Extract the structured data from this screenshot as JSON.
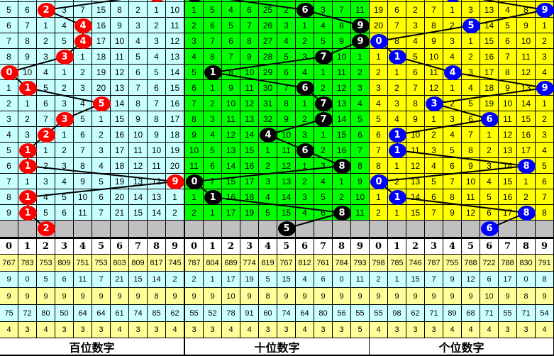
{
  "chart_data": {
    "type": "table",
    "panels": [
      {
        "title": "百位数字",
        "cell_color": "#c8ffff",
        "ball_color": "#ff0000",
        "prev_ball": 8,
        "rows": [
          [
            5,
            6,
            2,
            3,
            7,
            15,
            8,
            2,
            1,
            10
          ],
          [
            6,
            7,
            1,
            4,
            4,
            16,
            9,
            3,
            2,
            11
          ],
          [
            7,
            8,
            2,
            5,
            4,
            17,
            10,
            4,
            3,
            12
          ],
          [
            8,
            9,
            3,
            3,
            1,
            18,
            11,
            5,
            4,
            13
          ],
          [
            0,
            10,
            4,
            1,
            2,
            19,
            12,
            6,
            5,
            14
          ],
          [
            1,
            1,
            5,
            2,
            3,
            20,
            13,
            7,
            6,
            15
          ],
          [
            2,
            1,
            6,
            3,
            4,
            5,
            14,
            8,
            7,
            16
          ],
          [
            3,
            2,
            7,
            3,
            5,
            1,
            15,
            9,
            8,
            17
          ],
          [
            4,
            3,
            2,
            1,
            6,
            2,
            16,
            10,
            9,
            18
          ],
          [
            5,
            1,
            1,
            2,
            7,
            3,
            17,
            11,
            10,
            19
          ],
          [
            6,
            1,
            2,
            3,
            8,
            4,
            18,
            12,
            11,
            20
          ],
          [
            7,
            1,
            3,
            4,
            9,
            5,
            19,
            13,
            12,
            9
          ],
          [
            8,
            1,
            4,
            5,
            10,
            6,
            20,
            14,
            13,
            1
          ],
          [
            9,
            1,
            5,
            6,
            11,
            7,
            21,
            15,
            14,
            2
          ]
        ],
        "balls": [
          2,
          4,
          4,
          3,
          0,
          1,
          5,
          3,
          2,
          1,
          1,
          9,
          1,
          1
        ],
        "next_ball": 2,
        "stats": [
          [
            767,
            783,
            753,
            809,
            751,
            753,
            803,
            809,
            817,
            745
          ],
          [
            9,
            0,
            5,
            6,
            11,
            7,
            21,
            15,
            14,
            2
          ],
          [
            9,
            9,
            9,
            9,
            9,
            9,
            9,
            9,
            8,
            9
          ],
          [
            75,
            72,
            80,
            50,
            64,
            64,
            61,
            74,
            85,
            62
          ],
          [
            4,
            3,
            4,
            3,
            3,
            3,
            4,
            3,
            3,
            4
          ]
        ]
      },
      {
        "title": "十位数字",
        "cell_color": "#00ff00",
        "ball_color": "#000000",
        "prev_ball": 0,
        "rows": [
          [
            1,
            5,
            4,
            6,
            25,
            2,
            6,
            3,
            7,
            11
          ],
          [
            2,
            6,
            5,
            7,
            26,
            3,
            1,
            4,
            8,
            9
          ],
          [
            3,
            7,
            6,
            8,
            27,
            4,
            2,
            5,
            9,
            9
          ],
          [
            4,
            8,
            7,
            9,
            28,
            5,
            3,
            7,
            10,
            1
          ],
          [
            5,
            1,
            8,
            10,
            29,
            6,
            4,
            1,
            11,
            2
          ],
          [
            6,
            1,
            9,
            11,
            30,
            7,
            6,
            2,
            12,
            3
          ],
          [
            7,
            2,
            10,
            12,
            31,
            8,
            1,
            7,
            13,
            4
          ],
          [
            8,
            3,
            11,
            13,
            32,
            9,
            2,
            7,
            14,
            5
          ],
          [
            9,
            4,
            12,
            14,
            4,
            10,
            3,
            1,
            15,
            6
          ],
          [
            10,
            5,
            13,
            15,
            1,
            11,
            6,
            2,
            16,
            7
          ],
          [
            11,
            6,
            14,
            16,
            2,
            12,
            1,
            3,
            8,
            8
          ],
          [
            0,
            7,
            15,
            17,
            3,
            13,
            2,
            4,
            1,
            9
          ],
          [
            1,
            1,
            16,
            18,
            4,
            14,
            3,
            5,
            2,
            10
          ],
          [
            2,
            1,
            17,
            19,
            5,
            15,
            4,
            6,
            8,
            11
          ]
        ],
        "balls": [
          6,
          9,
          9,
          7,
          1,
          6,
          7,
          7,
          4,
          6,
          8,
          0,
          1,
          8
        ],
        "next_ball": 5,
        "stats": [
          [
            787,
            804,
            689,
            774,
            819,
            767,
            812,
            761,
            784,
            793
          ],
          [
            2,
            1,
            17,
            19,
            5,
            15,
            4,
            6,
            0,
            11
          ],
          [
            9,
            9,
            10,
            9,
            8,
            9,
            9,
            9,
            9,
            9
          ],
          [
            55,
            52,
            78,
            91,
            60,
            74,
            64,
            80,
            56,
            55
          ],
          [
            3,
            3,
            4,
            4,
            3,
            3,
            4,
            3,
            3,
            5
          ]
        ]
      },
      {
        "title": "个位数字",
        "cell_color": "#ffff00",
        "ball_color": "#0000ff",
        "prev_ball": 4,
        "rows": [
          [
            19,
            6,
            2,
            7,
            1,
            3,
            13,
            4,
            8,
            9
          ],
          [
            20,
            7,
            3,
            8,
            2,
            5,
            14,
            5,
            9,
            1
          ],
          [
            0,
            8,
            4,
            9,
            3,
            1,
            15,
            6,
            10,
            2
          ],
          [
            1,
            1,
            5,
            10,
            4,
            2,
            16,
            7,
            11,
            3
          ],
          [
            2,
            1,
            6,
            11,
            4,
            3,
            17,
            8,
            12,
            4
          ],
          [
            3,
            2,
            7,
            12,
            1,
            4,
            18,
            9,
            13,
            9
          ],
          [
            4,
            3,
            8,
            3,
            2,
            5,
            19,
            10,
            14,
            1
          ],
          [
            5,
            4,
            9,
            1,
            3,
            6,
            6,
            11,
            15,
            2
          ],
          [
            6,
            1,
            10,
            2,
            4,
            7,
            1,
            12,
            16,
            3
          ],
          [
            7,
            1,
            11,
            3,
            5,
            8,
            2,
            13,
            17,
            4
          ],
          [
            8,
            1,
            12,
            4,
            6,
            9,
            3,
            14,
            8,
            5
          ],
          [
            0,
            2,
            13,
            5,
            7,
            10,
            4,
            15,
            1,
            6
          ],
          [
            1,
            1,
            14,
            6,
            8,
            11,
            5,
            16,
            2,
            7
          ],
          [
            2,
            1,
            15,
            7,
            9,
            12,
            6,
            17,
            8,
            8
          ]
        ],
        "balls": [
          9,
          5,
          0,
          1,
          4,
          9,
          3,
          6,
          1,
          1,
          8,
          0,
          1,
          8
        ],
        "next_ball": 6,
        "stats": [
          [
            798,
            785,
            746,
            787,
            755,
            788,
            722,
            788,
            830,
            791
          ],
          [
            2,
            1,
            15,
            7,
            9,
            12,
            6,
            17,
            0,
            8
          ],
          [
            9,
            9,
            9,
            9,
            9,
            9,
            10,
            9,
            8,
            9
          ],
          [
            55,
            98,
            62,
            71,
            89,
            68,
            71,
            55,
            71,
            54
          ],
          [
            4,
            3,
            3,
            3,
            4,
            4,
            4,
            3,
            3,
            4
          ]
        ]
      }
    ],
    "column_headers": [
      "0",
      "1",
      "2",
      "3",
      "4",
      "5",
      "6",
      "7",
      "8",
      "9"
    ],
    "stat_row_colors": [
      "#ffff99",
      "#ccffff",
      "#ffff99",
      "#ccffff",
      "#ffff99"
    ],
    "gray_row_color": "#c0c0c0"
  }
}
